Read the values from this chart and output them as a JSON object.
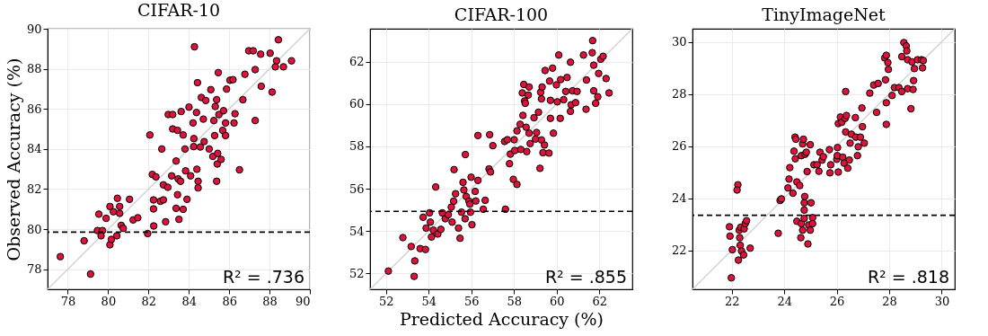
{
  "chart_data": [
    {
      "type": "scatter",
      "title": "CIFAR-10",
      "ylabel": "Observed Accuracy (%)",
      "grid": true,
      "xlim": [
        77,
        90
      ],
      "ylim": [
        77,
        90
      ],
      "xticks": [
        78,
        80,
        82,
        84,
        86,
        88,
        90
      ],
      "yticks": [
        78,
        80,
        82,
        84,
        86,
        88,
        90
      ],
      "ref_lines": [
        {
          "axis": "y",
          "value": 79.85,
          "color": "#000000",
          "line_style": "dashed"
        }
      ],
      "annotations": [
        "R² = .736"
      ],
      "series": [
        {
          "color": "#dc143c",
          "marker": "circle",
          "x": [
            77.63,
            79.13,
            78.81,
            79.47,
            79.54,
            79.72,
            79.65,
            79.9,
            80.09,
            80.09,
            80.16,
            80.26,
            80.46,
            80.57,
            80.57,
            80.65,
            80.43,
            80.75,
            81.06,
            81.24,
            81.47,
            81.96,
            82.07,
            82.19,
            82.25,
            82.25,
            82.26,
            82.37,
            82.59,
            82.74,
            82.74,
            82.66,
            82.85,
            82.98,
            83.2,
            83.2,
            83.15,
            82.96,
            83.37,
            83.44,
            83.47,
            83.37,
            83.44,
            83.51,
            83.59,
            83.62,
            83.72,
            83.72,
            83.81,
            83.84,
            83.91,
            84.01,
            84.09,
            84.24,
            84.25,
            84.21,
            84.28,
            84.38,
            84.4,
            84.43,
            84.46,
            84.46,
            84.57,
            84.62,
            84.72,
            84.76,
            84.84,
            85.01,
            85.09,
            85.19,
            85.24,
            85.31,
            85.28,
            85.38,
            85.38,
            85.43,
            85.41,
            85.46,
            85.49,
            85.6,
            85.68,
            85.72,
            85.82,
            85.82,
            85.87,
            86.04,
            86.19,
            86.24,
            86.29,
            86.51,
            86.68,
            86.78,
            86.97,
            87.19,
            87.29,
            87.29,
            87.56,
            87.59,
            88.03,
            88.13,
            88.29,
            88.35,
            88.44,
            88.69,
            89.09
          ],
          "values": [
            78.63,
            77.76,
            79.42,
            79.93,
            80.75,
            79.93,
            79.67,
            80.54,
            81.13,
            79.22,
            79.49,
            80.87,
            81.54,
            81.13,
            80.79,
            80.19,
            79.67,
            80.04,
            81.49,
            80.46,
            80.57,
            79.78,
            84.7,
            82.73,
            81.46,
            81.01,
            80.16,
            82.61,
            81.39,
            81.46,
            82.21,
            84.0,
            80.37,
            85.72,
            85.72,
            85.0,
            82.66,
            82.09,
            83.4,
            84.93,
            82.51,
            81.04,
            81.72,
            80.49,
            82.39,
            85.87,
            84.7,
            80.99,
            84.0,
            82.91,
            81.49,
            86.09,
            82.66,
            84.12,
            84.52,
            85.3,
            89.1,
            85.82,
            82.99,
            87.31,
            82.39,
            82.06,
            84.1,
            86.57,
            85.49,
            84.37,
            86.42,
            84.0,
            86.96,
            83.63,
            85.42,
            86.12,
            84.67,
            86.46,
            82.39,
            83.78,
            83.25,
            87.81,
            85.72,
            83.48,
            84.93,
            85.91,
            85.3,
            84.67,
            86.99,
            87.43,
            87.46,
            85.3,
            85.76,
            82.96,
            86.46,
            87.73,
            88.9,
            88.9,
            87.96,
            85.42,
            88.73,
            87.13,
            88.78,
            86.84,
            88.1,
            88.4,
            89.45,
            88.1,
            88.4
          ]
        },
        {
          "type": "line",
          "color": "#d3d3d3",
          "marker": "none",
          "x": [
            77,
            90
          ],
          "values": [
            77,
            90
          ]
        }
      ]
    },
    {
      "type": "scatter",
      "title": "CIFAR-100",
      "xlabel": "Predicted Accuracy (%)",
      "grid": true,
      "xlim": [
        51.25,
        63.55
      ],
      "ylim": [
        51.25,
        63.55
      ],
      "xticks": [
        52,
        54,
        56,
        58,
        60,
        62
      ],
      "yticks": [
        52,
        54,
        56,
        58,
        60,
        62
      ],
      "ref_lines": [
        {
          "axis": "y",
          "value": 54.93,
          "color": "#000000",
          "line_style": "dashed"
        }
      ],
      "annotations": [
        "R² = .855"
      ],
      "series": [
        {
          "color": "#dc143c",
          "marker": "circle",
          "x": [
            52.11,
            53.32,
            53.35,
            52.79,
            53.18,
            53.6,
            53.85,
            53.74,
            53.88,
            54.04,
            54.08,
            54.13,
            54.22,
            54.43,
            54.33,
            54.57,
            54.64,
            54.78,
            54.92,
            55.06,
            55.1,
            55.17,
            55.19,
            55.26,
            55.4,
            55.47,
            55.54,
            55.61,
            55.65,
            55.72,
            55.71,
            55.76,
            55.89,
            55.93,
            55.96,
            55.99,
            56.03,
            56.18,
            56.21,
            56.31,
            56.31,
            56.56,
            56.65,
            56.86,
            56.83,
            56.9,
            57.01,
            57.56,
            57.6,
            57.69,
            57.79,
            57.83,
            57.97,
            58.01,
            58.04,
            58.14,
            58.14,
            58.29,
            58.32,
            58.39,
            58.42,
            58.46,
            58.5,
            58.53,
            58.57,
            58.6,
            58.67,
            58.71,
            58.71,
            58.76,
            58.94,
            59.01,
            59.06,
            59.15,
            59.22,
            59.25,
            59.29,
            59.32,
            59.29,
            59.36,
            59.43,
            59.46,
            59.64,
            59.67,
            59.71,
            59.71,
            59.81,
            59.85,
            59.99,
            60.03,
            60.1,
            60.17,
            60.19,
            60.33,
            60.43,
            60.49,
            60.65,
            60.65,
            60.68,
            60.75,
            60.89,
            60.96,
            61.26,
            61.38,
            61.4,
            61.67,
            61.69,
            61.74,
            61.74,
            61.83,
            61.93,
            61.97,
            62.07,
            62.18,
            62.32,
            62.46
          ],
          "values": [
            52.11,
            51.86,
            52.59,
            53.69,
            53.27,
            53.17,
            53.13,
            54.65,
            54.14,
            54.86,
            54.42,
            53.72,
            54.04,
            53.86,
            56.08,
            54.08,
            54.86,
            54.58,
            54.77,
            55.13,
            54.42,
            55.41,
            56.9,
            55.76,
            54.14,
            53.66,
            54.89,
            56.3,
            55.94,
            57.61,
            54.58,
            55.63,
            55.41,
            55.27,
            54.89,
            56.54,
            54.3,
            55.87,
            55.42,
            56.39,
            58.51,
            55.03,
            55.45,
            58.55,
            56.93,
            56.79,
            58.03,
            58.23,
            55.03,
            58.31,
            57.18,
            57.63,
            56.44,
            58.31,
            57.8,
            56.2,
            58.73,
            59.04,
            57.85,
            60.52,
            59.46,
            60.92,
            60.14,
            60.03,
            58.9,
            57.75,
            60.42,
            60.8,
            58.62,
            58.13,
            59.35,
            58.34,
            58.65,
            59.61,
            56.96,
            60.55,
            60.24,
            60.8,
            58.3,
            57.7,
            58.06,
            61.58,
            57.68,
            61.08,
            60.17,
            59.32,
            61.69,
            58.62,
            60.9,
            60.1,
            62.31,
            59.32,
            61.15,
            60.2,
            60.59,
            61.25,
            61.97,
            59.65,
            59.96,
            60.62,
            60.06,
            60.59,
            62.31,
            59.75,
            61.13,
            62.42,
            62.99,
            61.83,
            60.62,
            60.03,
            60.34,
            61.44,
            62.11,
            62.25,
            61.2,
            60.52
          ]
        },
        {
          "type": "line",
          "color": "#d3d3d3",
          "marker": "none",
          "x": [
            51.25,
            63.55
          ],
          "values": [
            51.25,
            63.55
          ]
        }
      ]
    },
    {
      "type": "scatter",
      "title": "TinyImageNet",
      "grid": true,
      "xlim": [
        20.5,
        30.5
      ],
      "ylim": [
        20.5,
        30.5
      ],
      "xticks": [
        22,
        24,
        26,
        28,
        30
      ],
      "yticks": [
        22,
        24,
        26,
        28,
        30
      ],
      "ref_lines": [
        {
          "axis": "y",
          "value": 23.34,
          "color": "#000000",
          "line_style": "dashed"
        }
      ],
      "annotations": [
        "R² = .818"
      ],
      "series": [
        {
          "color": "#dc143c",
          "marker": "circle",
          "x": [
            21.98,
            21.91,
            21.93,
            22.02,
            22.23,
            22.2,
            22.25,
            22.28,
            22.3,
            22.32,
            22.34,
            22.37,
            22.45,
            22.47,
            22.51,
            22.56,
            22.7,
            23.77,
            23.84,
            23.89,
            24.14,
            24.18,
            24.21,
            24.33,
            24.37,
            24.41,
            24.44,
            24.42,
            24.48,
            24.48,
            24.59,
            24.63,
            24.65,
            24.65,
            24.7,
            24.7,
            24.73,
            24.76,
            24.76,
            24.76,
            24.78,
            24.79,
            24.84,
            24.87,
            24.9,
            24.93,
            24.99,
            24.99,
            25.02,
            25.08,
            25.08,
            25.13,
            25.25,
            25.32,
            25.36,
            25.44,
            25.49,
            25.72,
            25.74,
            25.77,
            26.0,
            26.02,
            26.06,
            26.03,
            26.06,
            26.14,
            26.19,
            26.23,
            26.28,
            26.32,
            26.34,
            26.34,
            26.37,
            26.42,
            26.48,
            26.51,
            26.56,
            26.71,
            26.73,
            26.79,
            26.82,
            26.9,
            26.96,
            26.98,
            27.05,
            27.26,
            27.41,
            27.52,
            27.58,
            27.86,
            27.89,
            27.89,
            27.83,
            27.89,
            27.95,
            27.97,
            28.11,
            28.2,
            28.37,
            28.48,
            28.48,
            28.56,
            28.65,
            28.67,
            28.7,
            28.7,
            28.83,
            28.87,
            28.91,
            28.93,
            28.96,
            29.08,
            29.23,
            29.27,
            29.3
          ],
          "values": [
            20.94,
            22.9,
            22.54,
            22.02,
            24.51,
            24.31,
            21.62,
            22.77,
            22.48,
            22.19,
            22.88,
            21.97,
            21.82,
            22.82,
            23.02,
            23.13,
            22.08,
            22.65,
            23.91,
            23.97,
            24.39,
            24.73,
            25.17,
            24.19,
            25.8,
            26.34,
            26.26,
            25.51,
            24.62,
            23.11,
            24.48,
            22.48,
            23.02,
            25.63,
            22.77,
            26.08,
            26.26,
            23.22,
            23.54,
            23.82,
            24.06,
            25.68,
            25.76,
            25.02,
            22.24,
            22.97,
            22.77,
            26.05,
            23.82,
            23.25,
            23.02,
            25.28,
            25.28,
            25.03,
            25.76,
            25.46,
            25.59,
            25.86,
            24.97,
            25.28,
            25.49,
            25.63,
            25.0,
            25.94,
            26.86,
            27.11,
            26.91,
            25.57,
            25.34,
            27.06,
            28.09,
            26.54,
            27.17,
            25.15,
            25.46,
            26.11,
            26.45,
            27.09,
            26.34,
            25.63,
            25.97,
            26.34,
            27.46,
            26.74,
            26.11,
            28.03,
            28.34,
            27.29,
            28.4,
            28.54,
            27.66,
            26.83,
            29.38,
            29.48,
            29.2,
            28.94,
            27.94,
            28.24,
            28.24,
            28.09,
            29.43,
            29.97,
            29.84,
            29.65,
            29.31,
            28.2,
            27.43,
            29.23,
            28.17,
            28.51,
            28.97,
            29.31,
            29.31,
            29.0,
            29.28
          ]
        },
        {
          "type": "line",
          "color": "#d3d3d3",
          "marker": "none",
          "x": [
            20.5,
            30.5
          ],
          "values": [
            20.5,
            30.5
          ]
        }
      ]
    }
  ]
}
